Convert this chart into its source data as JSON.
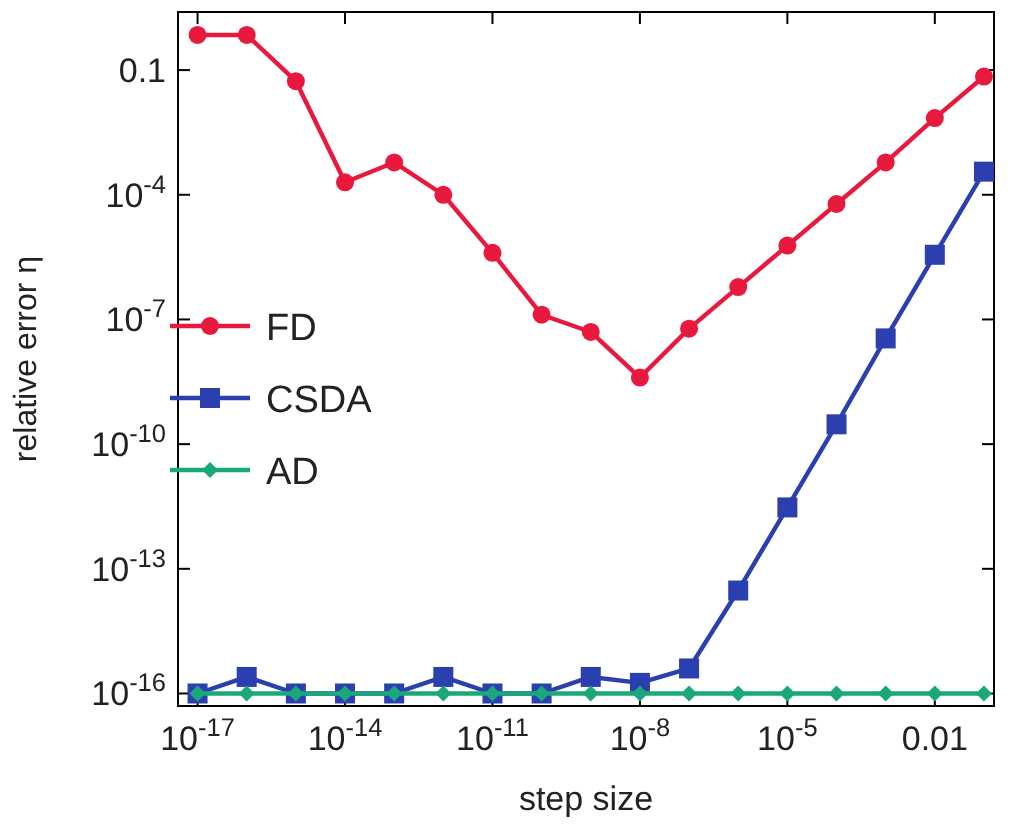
{
  "chart_data": {
    "type": "line",
    "xlabel": "step size",
    "ylabel": "relative error η",
    "log": "xy",
    "legend": "left",
    "grid": false,
    "x": [
      1e-17,
      1e-16,
      1e-15,
      1e-14,
      1e-13,
      1e-12,
      1e-11,
      1e-10,
      1e-09,
      1e-08,
      1e-07,
      1e-06,
      1e-05,
      0.0001,
      0.001,
      0.01,
      0.1
    ],
    "xlim": [
      4e-18,
      0.16
    ],
    "ylim": [
      5e-17,
      2.5
    ],
    "xticks": [
      {
        "value": 1e-17,
        "label": "10$^{-17}$"
      },
      {
        "value": 1e-14,
        "label": "10$^{-14}$"
      },
      {
        "value": 1e-11,
        "label": "10$^{-11}$"
      },
      {
        "value": 1e-08,
        "label": "10$^{-8}$"
      },
      {
        "value": 1e-05,
        "label": "10$^{-5}$"
      },
      0.01
    ],
    "yticks": [
      {
        "value": 1e-16,
        "label": "10$^{-16}$"
      },
      {
        "value": 1e-13,
        "label": "10$^{-13}$"
      },
      {
        "value": 1e-10,
        "label": "10$^{-10}$"
      },
      {
        "value": 1e-07,
        "label": "10$^{-7}$"
      },
      {
        "value": 0.0001,
        "label": "10$^{-4}$"
      },
      0.1
    ],
    "series": [
      {
        "name": "FD",
        "color": "#e8193c",
        "marker": "circle",
        "values": [
          0.7,
          0.7,
          0.054,
          0.0002,
          0.0006,
          0.0001,
          4e-06,
          1.3e-07,
          5e-08,
          4e-09,
          6e-08,
          6e-07,
          6e-06,
          6e-05,
          0.0006,
          0.007,
          0.07
        ]
      },
      {
        "name": "CSDA",
        "color": "#2b3fae",
        "marker": "square",
        "values": [
          1e-16,
          2.5e-16,
          1e-16,
          1e-16,
          1e-16,
          2.5e-16,
          1e-16,
          1e-16,
          2.5e-16,
          1.8e-16,
          4e-16,
          3e-14,
          3e-12,
          3e-10,
          3.5e-08,
          3.6e-06,
          0.00036
        ]
      },
      {
        "name": "AD",
        "color": "#1aa87a",
        "marker": "diamond",
        "values": [
          1e-16,
          1e-16,
          1e-16,
          1e-16,
          1e-16,
          1e-16,
          1e-16,
          1e-16,
          1e-16,
          1e-16,
          1e-16,
          1e-16,
          1e-16,
          1e-16,
          1e-16,
          1e-16,
          1e-16
        ]
      }
    ]
  }
}
